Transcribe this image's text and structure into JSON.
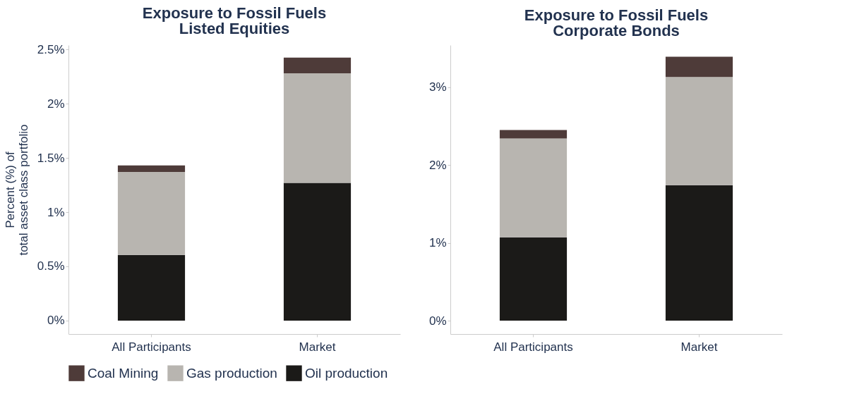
{
  "chart_data": [
    {
      "type": "bar",
      "title": "Exposure to Fossil Fuels",
      "subtitle": "Listed Equities",
      "ylabel": "Percent (%) of\ntotal asset class portfolio",
      "categories": [
        "All Participants",
        "Market"
      ],
      "stacked": true,
      "grid": false,
      "legend": "bottom",
      "ylim": [
        -0.124,
        2.54
      ],
      "yticks": [
        {
          "value": 0,
          "label": "0%"
        },
        {
          "value": 0.5,
          "label": "0.5%"
        },
        {
          "value": 1,
          "label": "1%"
        },
        {
          "value": 1.5,
          "label": "1.5%"
        },
        {
          "value": 2,
          "label": "2%"
        },
        {
          "value": 2.5,
          "label": "2.5%"
        }
      ],
      "series": [
        {
          "name": "Oil production",
          "color": "#1b1a18",
          "values": [
            0.606,
            1.27
          ]
        },
        {
          "name": "Gas production",
          "color": "#b8b5b0",
          "values": [
            0.765,
            1.01
          ]
        },
        {
          "name": "Coal Mining",
          "color": "#4e3b39",
          "values": [
            0.06,
            0.145
          ]
        }
      ]
    },
    {
      "type": "bar",
      "title": "Exposure to Fossil Fuels",
      "subtitle": "Corporate Bonds",
      "categories": [
        "All Participants",
        "Market"
      ],
      "stacked": true,
      "grid": false,
      "legend": "bottom",
      "ylim": [
        -0.172,
        3.54
      ],
      "yticks": [
        {
          "value": 0,
          "label": "0%"
        },
        {
          "value": 1,
          "label": "1%"
        },
        {
          "value": 2,
          "label": "2%"
        },
        {
          "value": 3,
          "label": "3%"
        }
      ],
      "series": [
        {
          "name": "Oil production",
          "color": "#1b1a18",
          "values": [
            1.07,
            1.74
          ]
        },
        {
          "name": "Gas production",
          "color": "#b8b5b0",
          "values": [
            1.27,
            1.39
          ]
        },
        {
          "name": "Coal Mining",
          "color": "#4e3b39",
          "values": [
            0.11,
            0.26
          ]
        }
      ]
    }
  ]
}
